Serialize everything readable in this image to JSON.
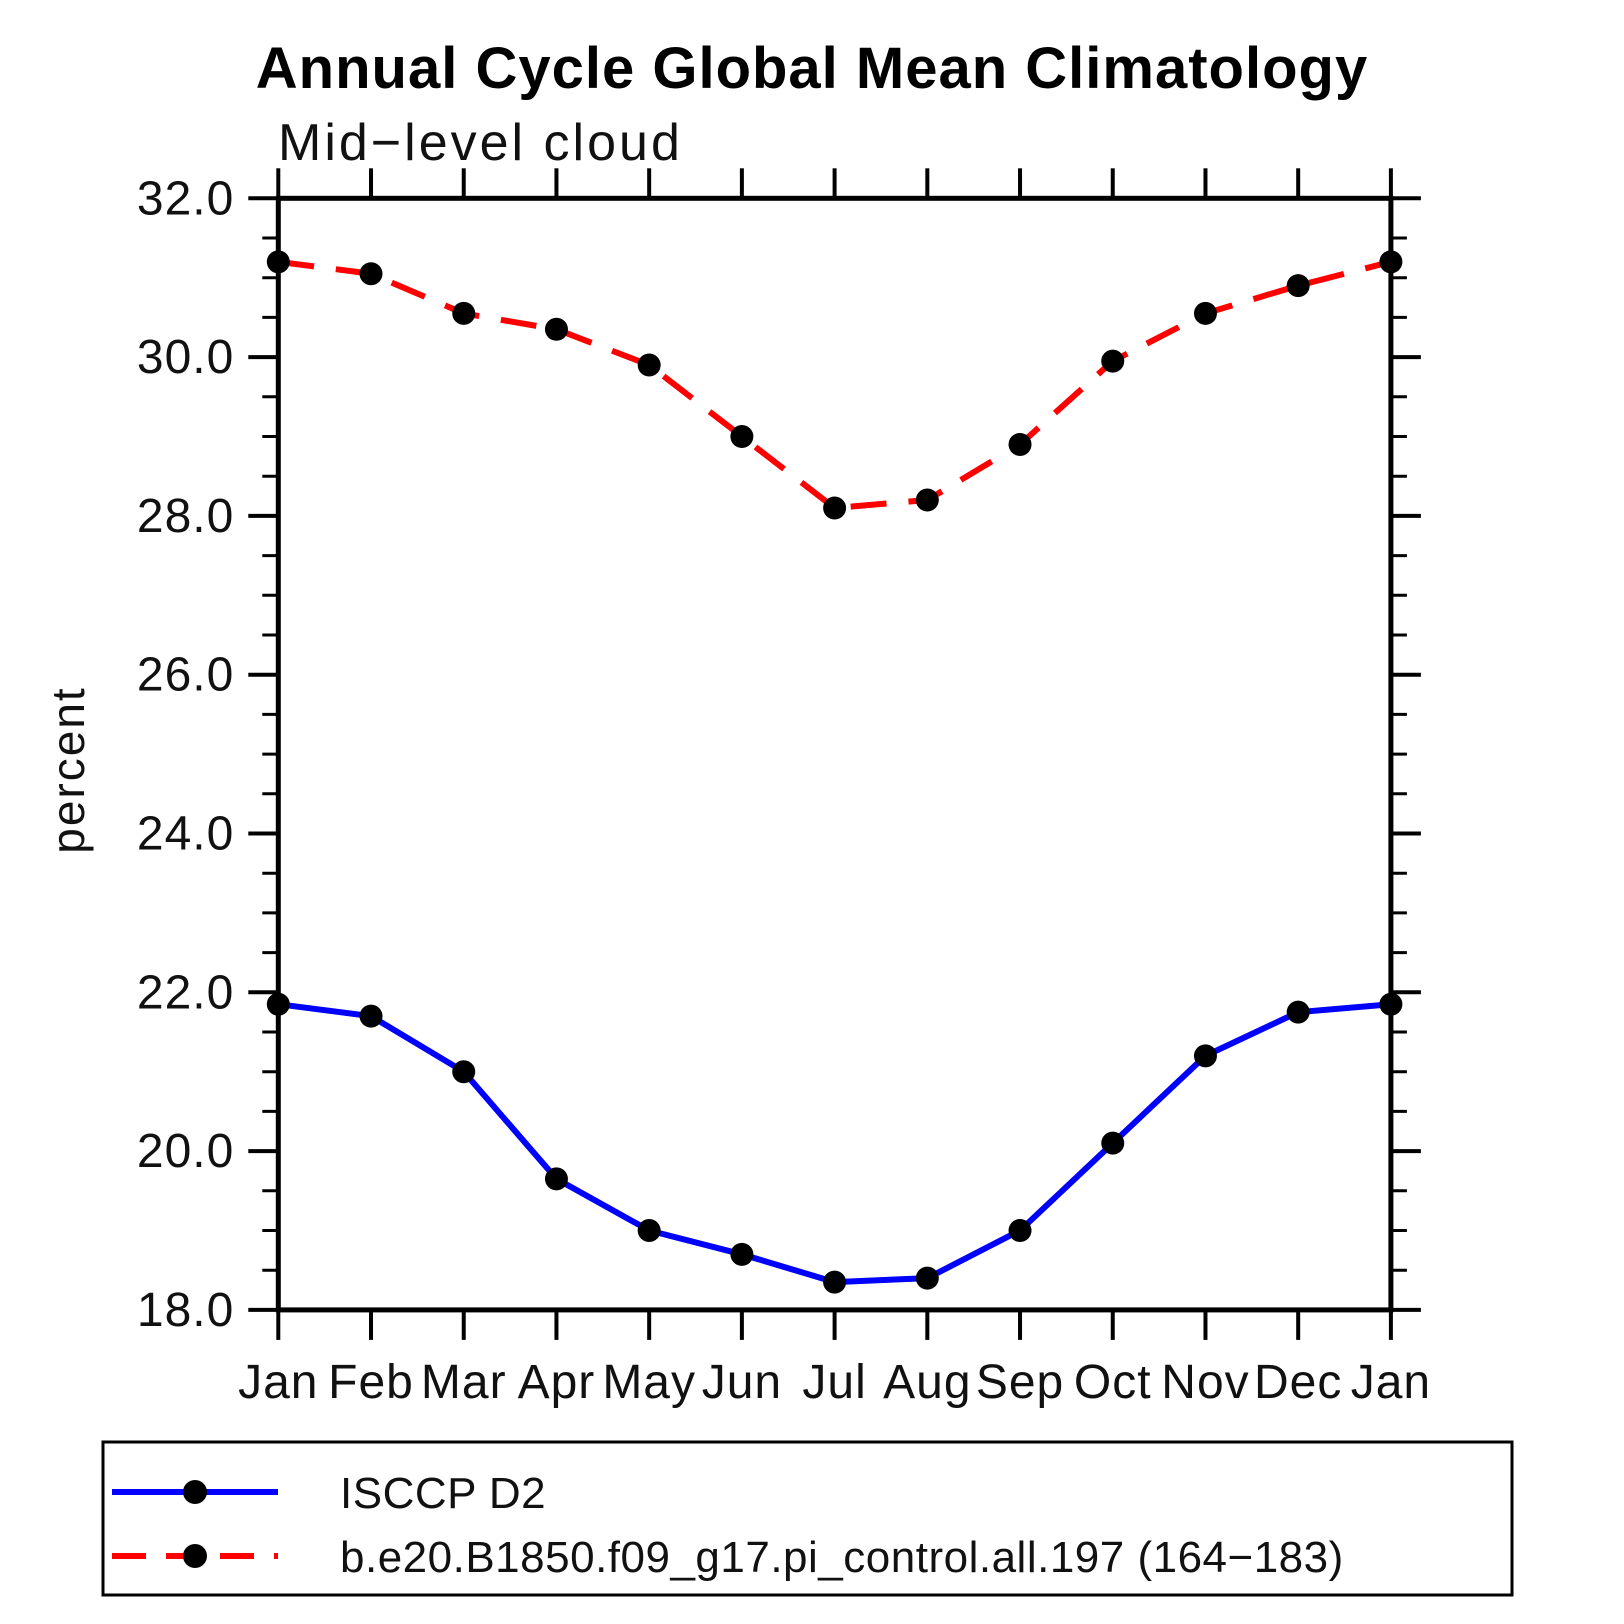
{
  "header": {
    "title": "Annual Cycle Global Mean Climatology",
    "subtitle": "Mid−level cloud"
  },
  "chart_data": {
    "type": "line",
    "title": "Annual Cycle Global Mean Climatology",
    "subtitle": "Mid−level cloud",
    "xlabel": "",
    "ylabel": "percent",
    "categories": [
      "Jan",
      "Feb",
      "Mar",
      "Apr",
      "May",
      "Jun",
      "Jul",
      "Aug",
      "Sep",
      "Oct",
      "Nov",
      "Dec",
      "Jan"
    ],
    "ylim": [
      18.0,
      32.0
    ],
    "y_major_ticks": [
      18,
      20,
      22,
      24,
      26,
      28,
      30,
      32
    ],
    "y_tick_labels": [
      "18.0",
      "20.0",
      "22.0",
      "24.0",
      "26.0",
      "28.0",
      "30.0",
      "32.0"
    ],
    "y_minor_step": 0.5,
    "grid": false,
    "legend_position": "bottom-left-box",
    "frame_color": "#000000",
    "marker_color": "#000000",
    "series": [
      {
        "name": "ISCCP D2",
        "color": "#0000ff",
        "line_style": "solid",
        "marker": "circle",
        "values": [
          21.85,
          21.7,
          21.0,
          19.65,
          19.0,
          18.7,
          18.35,
          18.4,
          19.0,
          20.1,
          21.2,
          21.75,
          21.85
        ]
      },
      {
        "name": "b.e20.B1850.f09_g17.pi_control.all.197 (164−183)",
        "color": "#ff0000",
        "line_style": "dashed",
        "marker": "circle",
        "values": [
          31.2,
          31.05,
          30.55,
          30.35,
          29.9,
          29.0,
          28.1,
          28.2,
          28.9,
          29.95,
          30.55,
          30.9,
          31.2
        ]
      }
    ]
  }
}
